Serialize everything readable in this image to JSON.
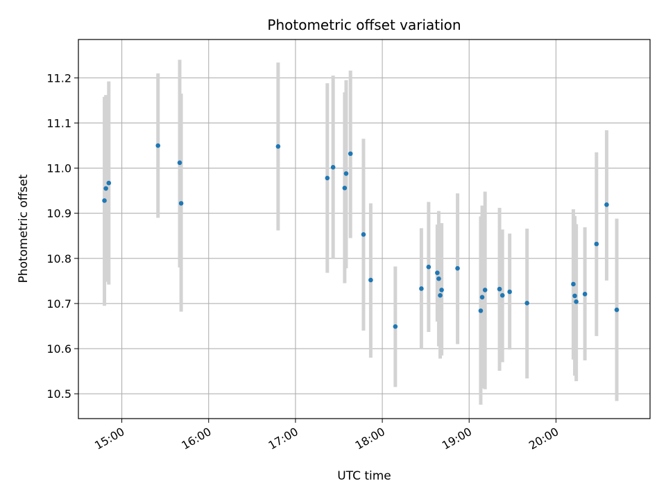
{
  "chart_data": {
    "type": "scatter",
    "title": "Photometric offset variation",
    "xlabel": "UTC time",
    "ylabel": "Photometric offset",
    "xlim": [
      "14:30",
      "21:05"
    ],
    "ylim": [
      10.445,
      11.285
    ],
    "x_ticks": [
      "15:00",
      "16:00",
      "17:00",
      "18:00",
      "19:00",
      "20:00"
    ],
    "y_ticks": [
      10.5,
      10.6,
      10.7,
      10.8,
      10.9,
      11.0,
      11.1,
      11.2
    ],
    "grid": true,
    "marker_color": "#1f77b4",
    "errorbar_color": "#d3d3d3",
    "series": [
      {
        "points": [
          {
            "x": "14:48",
            "y": 10.928,
            "low": 10.695,
            "high": 11.158
          },
          {
            "x": "14:49",
            "y": 10.955,
            "low": 10.748,
            "high": 11.162
          },
          {
            "x": "14:51",
            "y": 10.967,
            "low": 10.742,
            "high": 11.192
          },
          {
            "x": "15:25",
            "y": 11.05,
            "low": 10.89,
            "high": 11.21
          },
          {
            "x": "15:40",
            "y": 11.012,
            "low": 10.78,
            "high": 11.24
          },
          {
            "x": "15:41",
            "y": 10.922,
            "low": 10.682,
            "high": 11.165
          },
          {
            "x": "16:48",
            "y": 11.048,
            "low": 10.862,
            "high": 11.234
          },
          {
            "x": "17:22",
            "y": 10.978,
            "low": 10.768,
            "high": 11.188
          },
          {
            "x": "17:26",
            "y": 11.002,
            "low": 10.8,
            "high": 11.205
          },
          {
            "x": "17:34",
            "y": 10.956,
            "low": 10.745,
            "high": 11.168
          },
          {
            "x": "17:35",
            "y": 10.988,
            "low": 10.778,
            "high": 11.195
          },
          {
            "x": "17:38",
            "y": 11.032,
            "low": 10.845,
            "high": 11.216
          },
          {
            "x": "17:47",
            "y": 10.853,
            "low": 10.64,
            "high": 11.065
          },
          {
            "x": "17:52",
            "y": 10.752,
            "low": 10.58,
            "high": 10.922
          },
          {
            "x": "18:09",
            "y": 10.649,
            "low": 10.515,
            "high": 10.782
          },
          {
            "x": "18:27",
            "y": 10.733,
            "low": 10.6,
            "high": 10.867
          },
          {
            "x": "18:32",
            "y": 10.781,
            "low": 10.637,
            "high": 10.925
          },
          {
            "x": "18:38",
            "y": 10.768,
            "low": 10.66,
            "high": 10.875
          },
          {
            "x": "18:39",
            "y": 10.755,
            "low": 10.605,
            "high": 10.905
          },
          {
            "x": "18:40",
            "y": 10.718,
            "low": 10.578,
            "high": 10.86
          },
          {
            "x": "18:41",
            "y": 10.73,
            "low": 10.585,
            "high": 10.878
          },
          {
            "x": "18:52",
            "y": 10.778,
            "low": 10.61,
            "high": 10.944
          },
          {
            "x": "19:08",
            "y": 10.684,
            "low": 10.476,
            "high": 10.893
          },
          {
            "x": "19:09",
            "y": 10.714,
            "low": 10.512,
            "high": 10.917
          },
          {
            "x": "19:11",
            "y": 10.73,
            "low": 10.51,
            "high": 10.948
          },
          {
            "x": "19:21",
            "y": 10.732,
            "low": 10.551,
            "high": 10.912
          },
          {
            "x": "19:23",
            "y": 10.718,
            "low": 10.57,
            "high": 10.864
          },
          {
            "x": "19:28",
            "y": 10.726,
            "low": 10.598,
            "high": 10.855
          },
          {
            "x": "19:40",
            "y": 10.701,
            "low": 10.534,
            "high": 10.866
          },
          {
            "x": "20:12",
            "y": 10.743,
            "low": 10.576,
            "high": 10.909
          },
          {
            "x": "20:13",
            "y": 10.717,
            "low": 10.54,
            "high": 10.894
          },
          {
            "x": "20:14",
            "y": 10.704,
            "low": 10.528,
            "high": 10.876
          },
          {
            "x": "20:20",
            "y": 10.721,
            "low": 10.574,
            "high": 10.869
          },
          {
            "x": "20:28",
            "y": 10.832,
            "low": 10.628,
            "high": 11.035
          },
          {
            "x": "20:35",
            "y": 10.919,
            "low": 10.751,
            "high": 11.084
          },
          {
            "x": "20:42",
            "y": 10.686,
            "low": 10.484,
            "high": 10.888
          }
        ]
      }
    ]
  }
}
